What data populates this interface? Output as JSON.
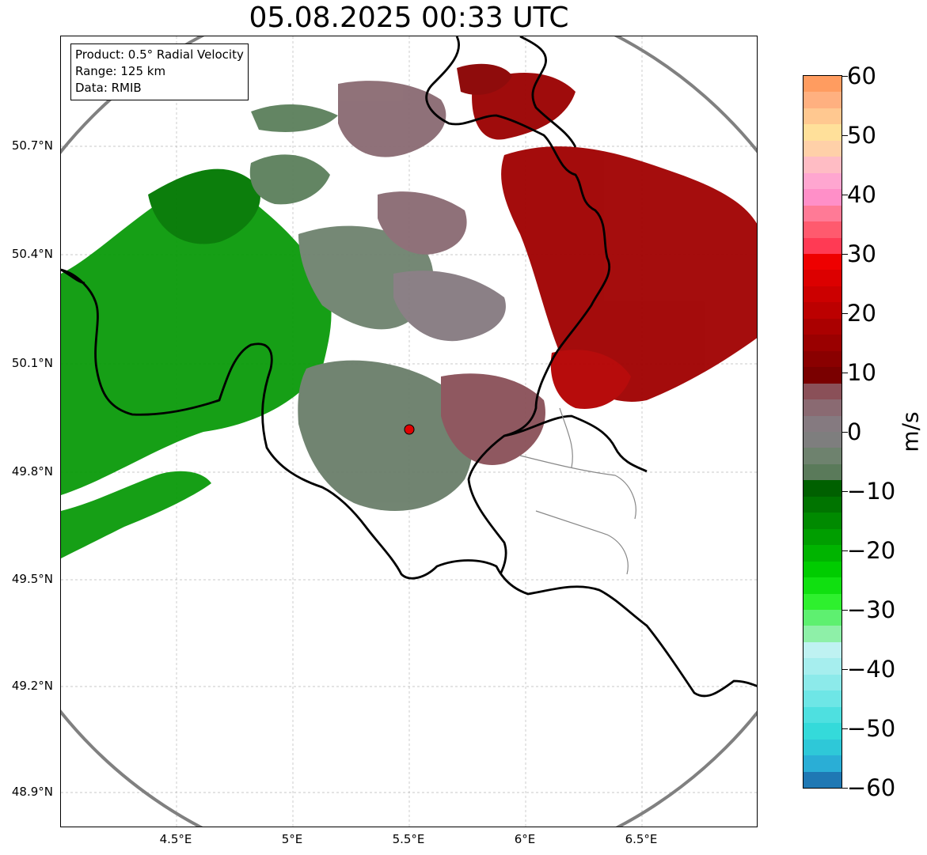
{
  "title": "05.08.2025 00:33 UTC",
  "info": {
    "product": "Product: 0.5° Radial Velocity",
    "range": "Range: 125 km",
    "data": "Data: RMIB"
  },
  "axes": {
    "lat_ticks": [
      "50.7°N",
      "50.4°N",
      "50.1°N",
      "49.8°N",
      "49.5°N",
      "49.2°N",
      "48.9°N"
    ],
    "lon_ticks": [
      "4.5°E",
      "5°E",
      "5.5°E",
      "6°E",
      "6.5°E"
    ]
  },
  "colorbar": {
    "unit": "m/s",
    "min": -60,
    "max": 60,
    "tick_labels": [
      "60",
      "50",
      "40",
      "30",
      "20",
      "10",
      "0",
      "−10",
      "−20",
      "−30",
      "−40",
      "−50",
      "−60"
    ],
    "tick_values": [
      60,
      50,
      40,
      30,
      20,
      10,
      0,
      -10,
      -20,
      -30,
      -40,
      -50,
      -60
    ],
    "colors": [
      "#1f78b4",
      "#2aaed6",
      "#2ec8d8",
      "#34dada",
      "#4ee0e0",
      "#6ee6e6",
      "#8ceaea",
      "#a6eeee",
      "#bff2f2",
      "#8ef0a8",
      "#5ef070",
      "#2ef02e",
      "#10e010",
      "#00cc00",
      "#00b400",
      "#009e00",
      "#008a00",
      "#007400",
      "#006000",
      "#5a7a5a",
      "#6e826e",
      "#7e7e7e",
      "#857a80",
      "#8a6a72",
      "#8a5058",
      "#7a0000",
      "#8a0000",
      "#9a0000",
      "#aa0000",
      "#bc0000",
      "#cc0000",
      "#dc0000",
      "#ee0000",
      "#ff3a54",
      "#ff5a6e",
      "#ff7a96",
      "#ff8fc8",
      "#ffa6d0",
      "#ffbcc4",
      "#ffd0a8",
      "#ffe09a",
      "#ffc890",
      "#ffb080",
      "#ff9c60"
    ]
  },
  "radar": {
    "site_lon": 5.5,
    "site_lat": 49.9,
    "site_color": "#e00000"
  }
}
